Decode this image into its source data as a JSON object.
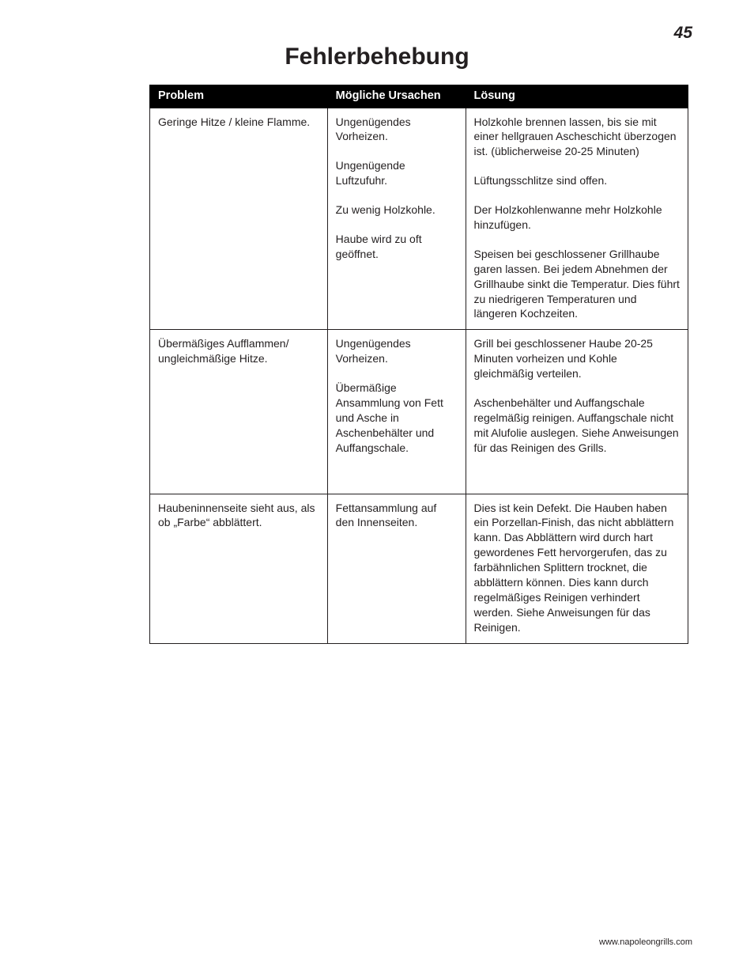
{
  "page_number": "45",
  "title": "Fehlerbehebung",
  "footer_url": "www.napoleongrills.com",
  "table": {
    "headers": {
      "problem": "Problem",
      "cause": "Mögliche Ursachen",
      "solution": "Lösung"
    },
    "rows": [
      {
        "problem": "Geringe Hitze / kleine Flamme.",
        "causes": [
          "Ungenügendes Vorheizen.",
          "Ungenügende Luftzufuhr.",
          "Zu wenig Holzkohle.",
          "Haube wird zu oft geöffnet."
        ],
        "solutions": [
          "Holzkohle brennen lassen, bis sie mit einer hellgrauen Ascheschicht überzogen ist. (üblicherweise 20-25 Minuten)",
          "Lüftungsschlitze sind offen.",
          "Der Holzkohlenwanne mehr Holzkohle hinzufügen.",
          "Speisen bei geschlossener Grillhaube garen lassen. Bei jedem Abnehmen der Grillhaube sinkt die Temperatur. Dies führt zu niedrigeren Temperaturen und längeren Kochzeiten."
        ]
      },
      {
        "problem": "Übermäßiges Aufflammen/ ungleichmäßige Hitze.",
        "causes": [
          "Ungenügendes Vorheizen.",
          "Übermäßige Ansammlung von Fett und Asche in Aschenbehälter und Auffangschale."
        ],
        "solutions": [
          "Grill bei geschlossener Haube 20-25 Minuten vorheizen und Kohle gleichmäßig verteilen.",
          "Aschenbehälter und Auffangschale regelmäßig reinigen. Auffangschale nicht mit Alufolie auslegen. Siehe Anweisungen für das Reinigen des Grills."
        ],
        "extra_bottom_pad": true
      },
      {
        "problem": "Haubeninnenseite sieht aus, als ob „Farbe“ abblättert.",
        "causes": [
          "Fettansammlung auf den Innenseiten."
        ],
        "solutions": [
          "Dies ist kein Defekt. Die Hauben haben ein Porzellan-Finish, das nicht abblättern kann. Das Abblättern wird durch hart gewordenes Fett hervorgerufen, das zu farbähnlichen Splittern trocknet, die abblättern können. Dies kann durch regelmäßiges Reinigen verhindert werden. Siehe Anweisungen für das Reinigen."
        ]
      }
    ]
  }
}
